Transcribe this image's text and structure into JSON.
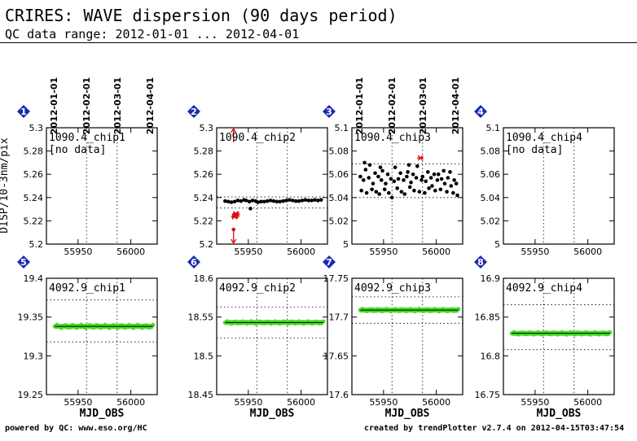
{
  "title": "CRIRES: WAVE dispersion (90 days period)",
  "subtitle": "QC data range: 2012-01-01 ... 2012-04-01",
  "y_axis_title_top": "DISP/10-3nm/pix",
  "footer_left": "powered by QC: www.eso.org/HC",
  "footer_right": "created by trendPlotter v2.7.4 on 2012-04-15T03:47:54",
  "chart_data": [
    {
      "type": "scatter",
      "panel": "1",
      "label": "1090.4_chip1",
      "note": "[no data]",
      "ylim": [
        5.2,
        5.3
      ],
      "yticks": [
        "5.3",
        "5.28",
        "5.26",
        "5.24",
        "5.22",
        "5.2"
      ],
      "xticks": [
        "55950",
        "56000"
      ],
      "date_ticks": [
        "2012-01-01",
        "2012-02-01",
        "2012-03-01",
        "2012-04-01"
      ],
      "ref_lines": [],
      "series": []
    },
    {
      "type": "scatter",
      "panel": "2",
      "label": "1090.4_chip2",
      "note": "",
      "ylim": [
        5.2,
        5.3
      ],
      "yticks": [
        "5.3",
        "5.28",
        "5.26",
        "5.24",
        "5.22",
        "5.2"
      ],
      "xticks": [
        "55950",
        "56000"
      ],
      "date_ticks": [],
      "ref_lines": [
        5.231,
        5.2405
      ],
      "outliers": [
        [
          55937,
          5.224
        ],
        [
          55938,
          5.2245
        ],
        [
          55939,
          5.2255
        ],
        [
          55938,
          5.226
        ],
        [
          55937,
          5.2235
        ]
      ],
      "arrows": [
        [
          55936,
          "up"
        ],
        [
          55936,
          "down"
        ]
      ],
      "series": [
        {
          "color": "#000000",
          "points": [
            [
              55928,
              5.237
            ],
            [
              55931,
              5.2365
            ],
            [
              55934,
              5.236
            ],
            [
              55937,
              5.2365
            ],
            [
              55940,
              5.2375
            ],
            [
              55943,
              5.237
            ],
            [
              55946,
              5.238
            ],
            [
              55948,
              5.2375
            ],
            [
              55951,
              5.2365
            ],
            [
              55954,
              5.2375
            ],
            [
              55957,
              5.237
            ],
            [
              55959,
              5.236
            ],
            [
              55962,
              5.2365
            ],
            [
              55965,
              5.2365
            ],
            [
              55968,
              5.237
            ],
            [
              55971,
              5.2375
            ],
            [
              55974,
              5.237
            ],
            [
              55977,
              5.2365
            ],
            [
              55980,
              5.2365
            ],
            [
              55983,
              5.237
            ],
            [
              55986,
              5.2375
            ],
            [
              55989,
              5.238
            ],
            [
              55992,
              5.2375
            ],
            [
              55995,
              5.237
            ],
            [
              55998,
              5.237
            ],
            [
              56001,
              5.2375
            ],
            [
              56004,
              5.238
            ],
            [
              56007,
              5.2375
            ],
            [
              56010,
              5.2375
            ],
            [
              56013,
              5.238
            ],
            [
              56016,
              5.2375
            ],
            [
              56019,
              5.238
            ],
            [
              55952,
              5.2305
            ]
          ]
        }
      ]
    },
    {
      "type": "scatter",
      "panel": "3",
      "label": "1090.4_chip3",
      "note": "",
      "ylim": [
        5.0,
        5.1
      ],
      "yticks": [
        "5.1",
        "5.08",
        "5.06",
        "5.04",
        "5.02",
        "5"
      ],
      "xticks": [
        "55950",
        "56000"
      ],
      "date_ticks": [
        "2012-01-01",
        "2012-02-01",
        "2012-03-01",
        "2012-04-01"
      ],
      "ref_lines": [
        5.04,
        5.069
      ],
      "outliers": [
        [
          55985,
          5.074
        ]
      ],
      "series": [
        {
          "color": "#000000",
          "points": [
            [
              55928,
              5.058
            ],
            [
              55929,
              5.046
            ],
            [
              55931,
              5.055
            ],
            [
              55933,
              5.064
            ],
            [
              55934,
              5.044
            ],
            [
              55936,
              5.057
            ],
            [
              55937,
              5.068
            ],
            [
              55939,
              5.047
            ],
            [
              55940,
              5.052
            ],
            [
              55942,
              5.061
            ],
            [
              55943,
              5.045
            ],
            [
              55945,
              5.058
            ],
            [
              55946,
              5.043
            ],
            [
              55948,
              5.055
            ],
            [
              55949,
              5.063
            ],
            [
              55951,
              5.047
            ],
            [
              55952,
              5.052
            ],
            [
              55954,
              5.06
            ],
            [
              55955,
              5.044
            ],
            [
              55957,
              5.056
            ],
            [
              55958,
              5.04
            ],
            [
              55960,
              5.054
            ],
            [
              55961,
              5.066
            ],
            [
              55963,
              5.048
            ],
            [
              55964,
              5.056
            ],
            [
              55966,
              5.061
            ],
            [
              55967,
              5.045
            ],
            [
              55969,
              5.055
            ],
            [
              55970,
              5.043
            ],
            [
              55972,
              5.058
            ],
            [
              55973,
              5.062
            ],
            [
              55975,
              5.049
            ],
            [
              55976,
              5.053
            ],
            [
              55978,
              5.06
            ],
            [
              55979,
              5.046
            ],
            [
              55981,
              5.057
            ],
            [
              55982,
              5.067
            ],
            [
              55984,
              5.045
            ],
            [
              55986,
              5.055
            ],
            [
              55987,
              5.058
            ],
            [
              55989,
              5.044
            ],
            [
              55990,
              5.054
            ],
            [
              55992,
              5.062
            ],
            [
              55993,
              5.048
            ],
            [
              55995,
              5.057
            ],
            [
              55996,
              5.05
            ],
            [
              55998,
              5.06
            ],
            [
              55999,
              5.046
            ],
            [
              56001,
              5.055
            ],
            [
              56002,
              5.06
            ],
            [
              56004,
              5.047
            ],
            [
              56005,
              5.056
            ],
            [
              56007,
              5.063
            ],
            [
              56008,
              5.052
            ],
            [
              56010,
              5.045
            ],
            [
              56011,
              5.057
            ],
            [
              56013,
              5.062
            ],
            [
              56014,
              5.05
            ],
            [
              56016,
              5.044
            ],
            [
              56017,
              5.055
            ],
            [
              56019,
              5.052
            ],
            [
              56020,
              5.042
            ],
            [
              55932,
              5.07
            ],
            [
              55947,
              5.066
            ],
            [
              55974,
              5.068
            ]
          ]
        }
      ]
    },
    {
      "type": "scatter",
      "panel": "4",
      "label": "1090.4_chip4",
      "note": "[no data]",
      "ylim": [
        5.0,
        5.1
      ],
      "yticks": [
        "5.1",
        "5.08",
        "5.06",
        "5.04",
        "5.02",
        "5"
      ],
      "xticks": [
        "55950",
        "56000"
      ],
      "date_ticks": [],
      "ref_lines": [],
      "series": []
    },
    {
      "type": "scatter",
      "panel": "5",
      "label": "4092.9_chip1",
      "note": "",
      "ylim": [
        19.25,
        19.4
      ],
      "yticks": [
        "19.4",
        "19.35",
        "19.3",
        "19.25"
      ],
      "xticks": [
        "55950",
        "56000"
      ],
      "date_ticks": [],
      "ref_lines": [
        19.318,
        19.372
      ],
      "band": {
        "from": 55928,
        "to": 56021,
        "center": 19.338
      },
      "series": [
        {
          "color": "#44dd22",
          "line_y": 19.338,
          "jitter": 0.002
        }
      ]
    },
    {
      "type": "scatter",
      "panel": "6",
      "label": "4092.9_chip2",
      "note": "",
      "ylim": [
        18.45,
        18.6
      ],
      "yticks": [
        "18.6",
        "18.55",
        "18.5",
        "18.45"
      ],
      "xticks": [
        "55950",
        "56000"
      ],
      "date_ticks": [],
      "ref_lines": [
        18.523,
        18.563
      ],
      "band": {
        "from": 55928,
        "to": 56021,
        "center": 18.543
      },
      "series": [
        {
          "color": "#44dd22",
          "line_y": 18.543,
          "jitter": 0.0015
        }
      ]
    },
    {
      "type": "scatter",
      "panel": "7",
      "label": "4092.9_chip3",
      "note": "",
      "ylim": [
        17.6,
        17.75
      ],
      "yticks": [
        "17.75",
        "17.7",
        "17.65",
        "17.6"
      ],
      "xticks": [
        "55950",
        "56000"
      ],
      "date_ticks": [],
      "ref_lines": [
        17.692,
        17.726
      ],
      "band": {
        "from": 55928,
        "to": 56021,
        "center": 17.709
      },
      "series": [
        {
          "color": "#44dd22",
          "line_y": 17.709,
          "jitter": 0.0015
        }
      ]
    },
    {
      "type": "scatter",
      "panel": "8",
      "label": "4092.9_chip4",
      "note": "",
      "ylim": [
        16.75,
        16.9
      ],
      "yticks": [
        "16.9",
        "16.85",
        "16.8",
        "16.75"
      ],
      "xticks": [
        "55950",
        "56000"
      ],
      "date_ticks": [],
      "ref_lines": [
        16.808,
        16.866
      ],
      "band": {
        "from": 55928,
        "to": 56021,
        "center": 16.829
      },
      "series": [
        {
          "color": "#44dd22",
          "line_y": 16.829,
          "jitter": 0.0015
        }
      ]
    }
  ],
  "xlabel": "MJD_OBS",
  "xlim": [
    55920,
    56025
  ],
  "date_x": [
    55927,
    55958,
    55987,
    56018
  ],
  "vgrid_x": [
    55958,
    55987
  ],
  "colors": {
    "badge": "#1a2ab0",
    "green": "#44dd22",
    "outlier": "#dd1111",
    "frame": "#000000"
  }
}
